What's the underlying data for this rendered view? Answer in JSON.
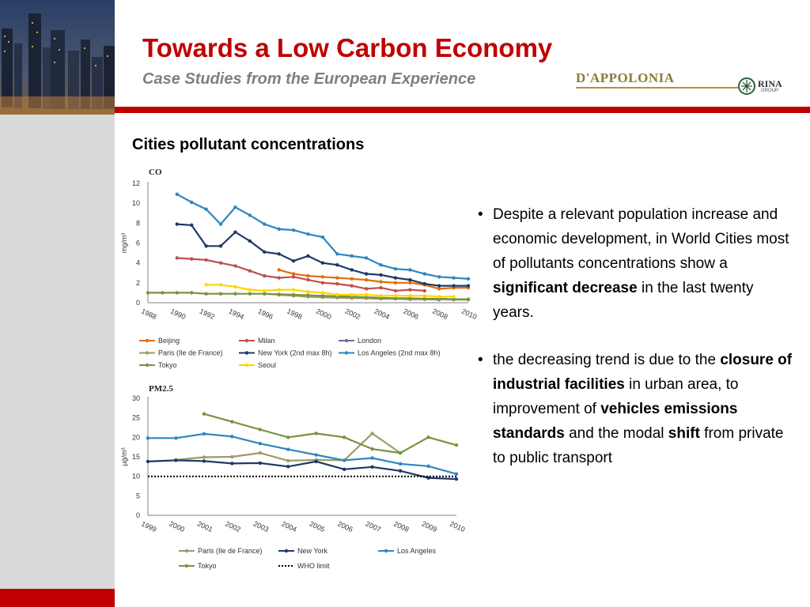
{
  "header": {
    "title": "Towards a Low Carbon Economy",
    "subtitle": "Case Studies from the European Experience",
    "logo_brand": "D'APPOLONIA",
    "logo_partner": "RINA",
    "logo_partner_sub": "GROUP"
  },
  "section_title": "Cities pollutant concentrations",
  "colors": {
    "accent": "#c00000",
    "subtitle": "#7f7f7f",
    "side_panel": "#d9d9d9"
  },
  "bullets": [
    {
      "runs": [
        {
          "text": "Despite a relevant population increase and economic development, in World Cities most of pollutants concentrations show a ",
          "bold": false
        },
        {
          "text": "significant decrease",
          "bold": true
        },
        {
          "text": " in the last twenty years.",
          "bold": false
        }
      ]
    },
    {
      "runs": [
        {
          "text": "the decreasing trend is due to the ",
          "bold": false
        },
        {
          "text": "closure of industrial facilities",
          "bold": true
        },
        {
          "text": " in urban area, to improvement of ",
          "bold": false
        },
        {
          "text": "vehicles emissions standards",
          "bold": true
        },
        {
          "text": " and the modal ",
          "bold": false
        },
        {
          "text": "shift",
          "bold": true
        },
        {
          "text": " from private to public transport",
          "bold": false
        }
      ]
    }
  ],
  "chart_data": [
    {
      "type": "line",
      "title": "CO",
      "ylabel": "mg/m³",
      "xlabel": "",
      "ylim": [
        0,
        12
      ],
      "yticks": [
        0,
        2,
        4,
        6,
        8,
        10,
        12
      ],
      "xlim": [
        1988,
        2010
      ],
      "xticks": [
        "1988",
        "1990",
        "1992",
        "1994",
        "1996",
        "1998",
        "2000",
        "2002",
        "2004",
        "2006",
        "2008",
        "2010"
      ],
      "grid": false,
      "legend_position": "bottom",
      "series": [
        {
          "name": "Beijing",
          "color": "#e46c0a",
          "dash": false,
          "x": [
            1997,
            1998,
            1999,
            2000,
            2001,
            2002,
            2003,
            2004,
            2005,
            2006,
            2007,
            2008,
            2009,
            2010
          ],
          "values": [
            3.3,
            2.9,
            2.7,
            2.6,
            2.5,
            2.4,
            2.3,
            2.1,
            2.0,
            2.0,
            1.8,
            1.4,
            1.5,
            1.5
          ]
        },
        {
          "name": "Milan",
          "color": "#c0504d",
          "dash": false,
          "x": [
            1990,
            1991,
            1992,
            1993,
            1994,
            1995,
            1996,
            1997,
            1998,
            1999,
            2000,
            2001,
            2002,
            2003,
            2004,
            2005,
            2006,
            2007
          ],
          "values": [
            4.5,
            4.4,
            4.3,
            4.0,
            3.7,
            3.2,
            2.7,
            2.5,
            2.6,
            2.3,
            2.0,
            1.9,
            1.7,
            1.4,
            1.5,
            1.2,
            1.3,
            1.2
          ]
        },
        {
          "name": "London",
          "color": "#8064a2",
          "dash": false,
          "x": [
            1997,
            1998,
            1999,
            2000,
            2001,
            2002,
            2003,
            2004,
            2005,
            2006,
            2007,
            2008
          ],
          "values": [
            0.8,
            0.7,
            0.65,
            0.6,
            0.55,
            0.5,
            0.45,
            0.4,
            0.4,
            0.35,
            0.35,
            0.3
          ]
        },
        {
          "name": "Paris (Ile de France)",
          "color": "#9b9b69",
          "dash": false,
          "x": [
            1996,
            1997,
            1998,
            1999,
            2000,
            2001,
            2002,
            2003,
            2004,
            2005,
            2006,
            2007,
            2008,
            2009,
            2010
          ],
          "values": [
            0.9,
            0.8,
            0.7,
            0.6,
            0.55,
            0.5,
            0.45,
            0.45,
            0.4,
            0.4,
            0.4,
            0.35,
            0.35,
            0.3,
            0.3
          ]
        },
        {
          "name": "New York (2nd max 8h)",
          "color": "#1f3864",
          "dash": false,
          "x": [
            1990,
            1991,
            1992,
            1993,
            1994,
            1995,
            1996,
            1997,
            1998,
            1999,
            2000,
            2001,
            2002,
            2003,
            2004,
            2005,
            2006,
            2007,
            2008,
            2009,
            2010
          ],
          "values": [
            7.9,
            7.8,
            5.7,
            5.7,
            7.1,
            6.2,
            5.1,
            4.9,
            4.2,
            4.7,
            4.0,
            3.8,
            3.3,
            2.9,
            2.8,
            2.5,
            2.3,
            1.9,
            1.7,
            1.7,
            1.7
          ]
        },
        {
          "name": "Los Angeles (2nd max 8h)",
          "color": "#2e86c1",
          "dash": false,
          "x": [
            1990,
            1991,
            1992,
            1993,
            1994,
            1995,
            1996,
            1997,
            1998,
            1999,
            2000,
            2001,
            2002,
            2003,
            2004,
            2005,
            2006,
            2007,
            2008,
            2009,
            2010
          ],
          "values": [
            10.9,
            10.1,
            9.4,
            7.9,
            9.6,
            8.8,
            7.9,
            7.4,
            7.3,
            6.9,
            6.6,
            4.9,
            4.7,
            4.5,
            3.8,
            3.4,
            3.3,
            2.9,
            2.6,
            2.5,
            2.4
          ]
        },
        {
          "name": "Tokyo",
          "color": "#77933c",
          "dash": false,
          "x": [
            1988,
            1989,
            1990,
            1991,
            1992,
            1993,
            1994,
            1995,
            1996,
            1997,
            1998,
            1999,
            2000,
            2001,
            2002,
            2003,
            2004,
            2005,
            2006,
            2007,
            2008,
            2009,
            2010
          ],
          "values": [
            1.0,
            1.0,
            1.0,
            1.0,
            0.9,
            0.9,
            0.9,
            0.9,
            0.9,
            0.85,
            0.8,
            0.75,
            0.7,
            0.65,
            0.6,
            0.55,
            0.5,
            0.45,
            0.45,
            0.4,
            0.4,
            0.35,
            0.35
          ]
        },
        {
          "name": "Seoul",
          "color": "#ffd700",
          "dash": false,
          "x": [
            1992,
            1993,
            1994,
            1995,
            1996,
            1997,
            1998,
            1999,
            2000,
            2001,
            2002,
            2003,
            2004,
            2005,
            2006,
            2007,
            2008,
            2009
          ],
          "values": [
            1.8,
            1.8,
            1.6,
            1.3,
            1.2,
            1.3,
            1.3,
            1.1,
            1.0,
            0.8,
            0.8,
            0.8,
            0.7,
            0.7,
            0.7,
            0.7,
            0.6,
            0.6
          ]
        }
      ]
    },
    {
      "type": "line",
      "title": "PM2.5",
      "ylabel": "µg/m³",
      "xlabel": "",
      "ylim": [
        0,
        30
      ],
      "yticks": [
        0,
        5,
        10,
        15,
        20,
        25,
        30
      ],
      "xlim": [
        1999,
        2010
      ],
      "xticks": [
        "1999",
        "2000",
        "2001",
        "2002",
        "2003",
        "2004",
        "2005",
        "2006",
        "2007",
        "2008",
        "2009",
        "2010"
      ],
      "grid": false,
      "legend_position": "bottom",
      "series": [
        {
          "name": "Paris (Ile de France)",
          "color": "#9b9b69",
          "dash": false,
          "x": [
            2000,
            2001,
            2002,
            2003,
            2004,
            2005,
            2006,
            2007,
            2008
          ],
          "values": [
            14.2,
            14.9,
            15.0,
            16.0,
            14.0,
            14.2,
            14.1,
            21.0,
            16.0
          ]
        },
        {
          "name": "New York",
          "color": "#1f3864",
          "dash": false,
          "x": [
            1999,
            2000,
            2001,
            2002,
            2003,
            2004,
            2005,
            2006,
            2007,
            2008,
            2009,
            2010
          ],
          "values": [
            13.8,
            14.1,
            13.9,
            13.3,
            13.4,
            12.5,
            13.8,
            11.8,
            12.4,
            11.4,
            9.6,
            9.3
          ]
        },
        {
          "name": "Los Angeles",
          "color": "#2e86c1",
          "dash": false,
          "x": [
            1999,
            2000,
            2001,
            2002,
            2003,
            2004,
            2005,
            2006,
            2007,
            2008,
            2009,
            2010
          ],
          "values": [
            19.8,
            19.8,
            20.9,
            20.2,
            18.4,
            16.9,
            15.5,
            14.1,
            14.7,
            13.2,
            12.6,
            10.6
          ]
        },
        {
          "name": "Tokyo",
          "color": "#77933c",
          "dash": false,
          "x": [
            2001,
            2002,
            2003,
            2004,
            2005,
            2006,
            2007,
            2008,
            2009,
            2010
          ],
          "values": [
            26.0,
            24.0,
            22.0,
            20.0,
            21.0,
            20.0,
            17.0,
            16.0,
            20.0,
            18.0
          ]
        },
        {
          "name": "WHO limit",
          "color": "#000000",
          "dash": true,
          "x": [
            1999,
            2010
          ],
          "values": [
            10,
            10
          ]
        }
      ]
    }
  ]
}
